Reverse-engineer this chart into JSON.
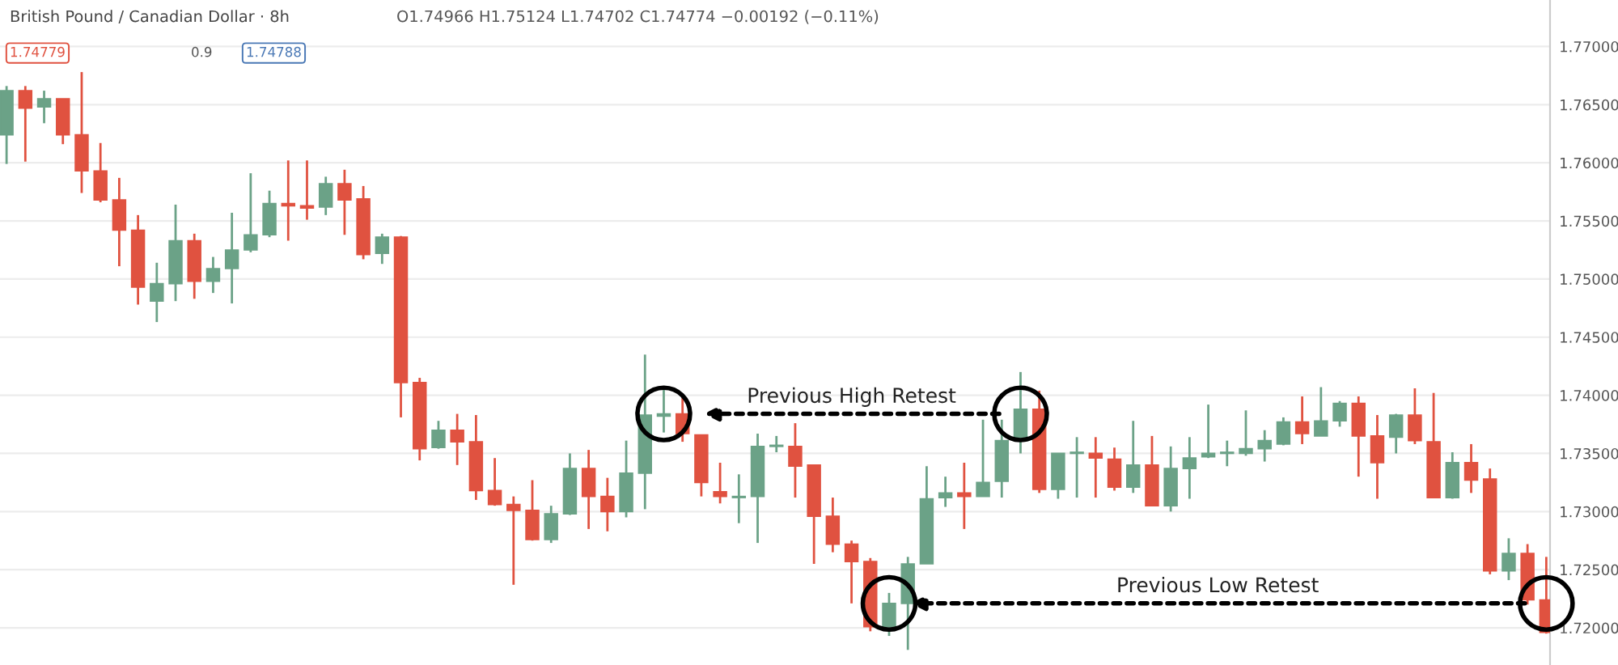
{
  "chart_data": {
    "type": "candlestick",
    "title": "British Pound / Canadian Dollar · 8h",
    "annotations": [
      "O1.74966 H1.75124 L1.74702 C1.74774 −0.00192 (−0.11%)",
      "1.74779",
      "0.9",
      "1.74788",
      "Previous High Retest",
      "Previous Low Retest"
    ],
    "categories": [
      null,
      null,
      null,
      null,
      null,
      null,
      null,
      null,
      null,
      null,
      null,
      null,
      null,
      null,
      null,
      null,
      null,
      null,
      null,
      null,
      null,
      null,
      null,
      null,
      null,
      null,
      null,
      null,
      null,
      null,
      null,
      null,
      null,
      null,
      null,
      null,
      null,
      null,
      null,
      null,
      null,
      null,
      null,
      null,
      null,
      null,
      null,
      null,
      null,
      null,
      null,
      null,
      null,
      null,
      null,
      null,
      null,
      null,
      null,
      null,
      null,
      null,
      null,
      null,
      null,
      null,
      null,
      null,
      null,
      null,
      null,
      null,
      null,
      null,
      null,
      null,
      null,
      null,
      null,
      null,
      null,
      null,
      null
    ],
    "ohlc": [
      [
        1.7624,
        1.7666,
        1.7599,
        1.7662
      ],
      [
        1.7662,
        1.7666,
        1.7601,
        1.7647
      ],
      [
        1.7648,
        1.7662,
        1.7634,
        1.7655
      ],
      [
        1.7655,
        1.7655,
        1.7616,
        1.7624
      ],
      [
        1.7624,
        1.7678,
        1.7574,
        1.7593
      ],
      [
        1.7593,
        1.7617,
        1.7566,
        1.7568
      ],
      [
        1.7568,
        1.7587,
        1.7511,
        1.7542
      ],
      [
        1.7542,
        1.7555,
        1.7478,
        1.7493
      ],
      [
        1.7481,
        1.7514,
        1.7463,
        1.7496
      ],
      [
        1.7496,
        1.7564,
        1.7481,
        1.7533
      ],
      [
        1.7533,
        1.7539,
        1.7483,
        1.7498
      ],
      [
        1.7498,
        1.7519,
        1.7488,
        1.7509
      ],
      [
        1.7509,
        1.7557,
        1.7479,
        1.7525
      ],
      [
        1.7525,
        1.7591,
        1.7523,
        1.7538
      ],
      [
        1.7538,
        1.7576,
        1.7536,
        1.7565
      ],
      [
        1.7565,
        1.7602,
        1.7533,
        1.7563
      ],
      [
        1.7563,
        1.7602,
        1.7551,
        1.7561
      ],
      [
        1.7562,
        1.7588,
        1.7555,
        1.7582
      ],
      [
        1.7582,
        1.7594,
        1.7538,
        1.7568
      ],
      [
        1.7569,
        1.758,
        1.7517,
        1.7521
      ],
      [
        1.7522,
        1.7539,
        1.7513,
        1.7536
      ],
      [
        1.7536,
        1.7537,
        1.7381,
        1.7411
      ],
      [
        1.7411,
        1.7415,
        1.7344,
        1.7354
      ],
      [
        1.7355,
        1.7378,
        1.7354,
        1.737
      ],
      [
        1.737,
        1.7384,
        1.734,
        1.736
      ],
      [
        1.736,
        1.7383,
        1.731,
        1.7318
      ],
      [
        1.7318,
        1.7346,
        1.7305,
        1.7306
      ],
      [
        1.7306,
        1.7313,
        1.7237,
        1.7301
      ],
      [
        1.7301,
        1.7327,
        1.7275,
        1.7276
      ],
      [
        1.7276,
        1.7305,
        1.7273,
        1.7298
      ],
      [
        1.7298,
        1.735,
        1.7297,
        1.7337
      ],
      [
        1.7337,
        1.7353,
        1.7285,
        1.7313
      ],
      [
        1.7313,
        1.7329,
        1.7283,
        1.73
      ],
      [
        1.73,
        1.7361,
        1.7295,
        1.7333
      ],
      [
        1.7333,
        1.7435,
        1.7302,
        1.7383
      ],
      [
        1.7382,
        1.7407,
        1.7368,
        1.7384
      ],
      [
        1.7384,
        1.7398,
        1.736,
        1.7367
      ],
      [
        1.7366,
        1.7366,
        1.7313,
        1.7325
      ],
      [
        1.7317,
        1.7342,
        1.7307,
        1.7313
      ],
      [
        1.7312,
        1.7332,
        1.729,
        1.7313
      ],
      [
        1.7313,
        1.7367,
        1.7273,
        1.7356
      ],
      [
        1.7356,
        1.7365,
        1.7351,
        1.7357
      ],
      [
        1.7356,
        1.7376,
        1.7312,
        1.7339
      ],
      [
        1.734,
        1.734,
        1.7255,
        1.7296
      ],
      [
        1.7296,
        1.7312,
        1.7265,
        1.7272
      ],
      [
        1.7272,
        1.7275,
        1.7221,
        1.7257
      ],
      [
        1.7257,
        1.726,
        1.7197,
        1.7201
      ],
      [
        1.7201,
        1.723,
        1.7193,
        1.7221
      ],
      [
        1.7221,
        1.7261,
        1.7181,
        1.7255
      ],
      [
        1.7255,
        1.7339,
        1.7255,
        1.7311
      ],
      [
        1.7312,
        1.733,
        1.7304,
        1.7316
      ],
      [
        1.7316,
        1.7342,
        1.7285,
        1.7313
      ],
      [
        1.7313,
        1.7379,
        1.7313,
        1.7325
      ],
      [
        1.7326,
        1.7379,
        1.7312,
        1.7361
      ],
      [
        1.7361,
        1.742,
        1.735,
        1.7388
      ],
      [
        1.7388,
        1.7404,
        1.7316,
        1.7319
      ],
      [
        1.7319,
        1.735,
        1.7311,
        1.735
      ],
      [
        1.735,
        1.7364,
        1.7312,
        1.7351
      ],
      [
        1.735,
        1.7364,
        1.7312,
        1.7346
      ],
      [
        1.7345,
        1.7355,
        1.7318,
        1.7321
      ],
      [
        1.7321,
        1.7378,
        1.7316,
        1.734
      ],
      [
        1.734,
        1.7365,
        1.7305,
        1.7305
      ],
      [
        1.7305,
        1.7356,
        1.73,
        1.7337
      ],
      [
        1.7337,
        1.7364,
        1.7311,
        1.7346
      ],
      [
        1.7347,
        1.7392,
        1.7346,
        1.735
      ],
      [
        1.735,
        1.7361,
        1.7339,
        1.7351
      ],
      [
        1.735,
        1.7387,
        1.7348,
        1.7354
      ],
      [
        1.7354,
        1.737,
        1.7343,
        1.7361
      ],
      [
        1.7358,
        1.7381,
        1.7357,
        1.7377
      ],
      [
        1.7377,
        1.7399,
        1.7358,
        1.7367
      ],
      [
        1.7365,
        1.7407,
        1.7365,
        1.7378
      ],
      [
        1.7378,
        1.7395,
        1.7373,
        1.7393
      ],
      [
        1.7393,
        1.7399,
        1.733,
        1.7365
      ],
      [
        1.7365,
        1.7383,
        1.7311,
        1.7342
      ],
      [
        1.7364,
        1.7384,
        1.735,
        1.7383
      ],
      [
        1.7383,
        1.7406,
        1.7358,
        1.7361
      ],
      [
        1.736,
        1.7402,
        1.7312,
        1.7312
      ],
      [
        1.7312,
        1.7351,
        1.7311,
        1.7342
      ],
      [
        1.7342,
        1.7358,
        1.7316,
        1.7327
      ],
      [
        1.7328,
        1.7337,
        1.7246,
        1.7249
      ],
      [
        1.7249,
        1.7277,
        1.7241,
        1.7264
      ],
      [
        1.7264,
        1.7272,
        1.722,
        1.7224
      ],
      [
        1.7224,
        1.7261,
        1.7195,
        1.7196
      ]
    ],
    "colors": [
      "#6ba287",
      "#e05240",
      "#6ba287",
      "#e05240",
      "#e05240",
      "#e05240",
      "#e05240",
      "#e05240",
      "#6ba287",
      "#6ba287",
      "#e05240",
      "#6ba287",
      "#6ba287",
      "#6ba287",
      "#6ba287",
      "#e05240",
      "#e05240",
      "#6ba287",
      "#e05240",
      "#e05240",
      "#6ba287",
      "#e05240",
      "#e05240",
      "#6ba287",
      "#e05240",
      "#e05240",
      "#e05240",
      "#e05240",
      "#e05240",
      "#6ba287",
      "#6ba287",
      "#e05240",
      "#e05240",
      "#6ba287",
      "#6ba287",
      "#6ba287",
      "#e05240",
      "#e05240",
      "#e05240",
      "#6ba287",
      "#6ba287",
      "#6ba287",
      "#e05240",
      "#e05240",
      "#e05240",
      "#e05240",
      "#e05240",
      "#6ba287",
      "#6ba287",
      "#6ba287",
      "#6ba287",
      "#e05240",
      "#6ba287",
      "#6ba287",
      "#6ba287",
      "#e05240",
      "#6ba287",
      "#6ba287",
      "#e05240",
      "#e05240",
      "#6ba287",
      "#e05240",
      "#6ba287",
      "#6ba287",
      "#6ba287",
      "#6ba287",
      "#6ba287",
      "#6ba287",
      "#6ba287",
      "#e05240",
      "#6ba287",
      "#6ba287",
      "#e05240",
      "#e05240",
      "#6ba287",
      "#e05240",
      "#e05240",
      "#6ba287",
      "#e05240",
      "#e05240",
      "#6ba287",
      "#e05240",
      "#e05240"
    ],
    "ylim": [
      1.7168,
      1.774
    ],
    "yticks": [
      {
        "value": 1.72,
        "label": "1.72000"
      },
      {
        "value": 1.725,
        "label": "1.72500"
      },
      {
        "value": 1.73,
        "label": "1.73000"
      },
      {
        "value": 1.735,
        "label": "1.73500"
      },
      {
        "value": 1.74,
        "label": "1.74000"
      },
      {
        "value": 1.745,
        "label": "1.74500"
      },
      {
        "value": 1.75,
        "label": "1.75000"
      },
      {
        "value": 1.755,
        "label": "1.75500"
      },
      {
        "value": 1.76,
        "label": "1.76000"
      },
      {
        "value": 1.765,
        "label": "1.76500"
      },
      {
        "value": 1.77,
        "label": "1.77000"
      }
    ],
    "grid": "y",
    "tick_labels": "y"
  }
}
